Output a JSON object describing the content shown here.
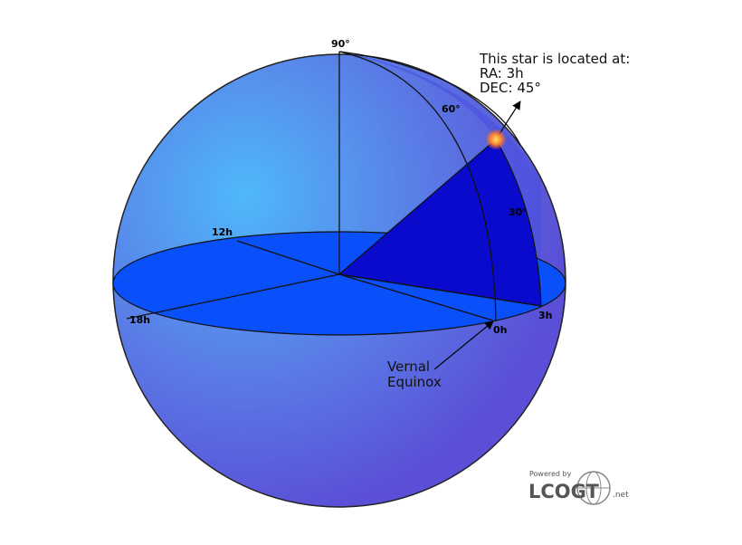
{
  "labels": {
    "pole": "90°",
    "angle_ra": "60°",
    "angle_dec": "30°",
    "hour_12": "12h",
    "hour_18": "18h",
    "hour_0": "0h",
    "hour_3": "3h"
  },
  "callout": {
    "line1": "This star is located at:",
    "line2": "RA: 3h",
    "line3": "DEC: 45°"
  },
  "vernal": {
    "line1": "Vernal",
    "line2": "Equinox"
  },
  "logo": {
    "powered": "Powered by",
    "brand": "LCOGT",
    "suffix": ".net"
  }
}
